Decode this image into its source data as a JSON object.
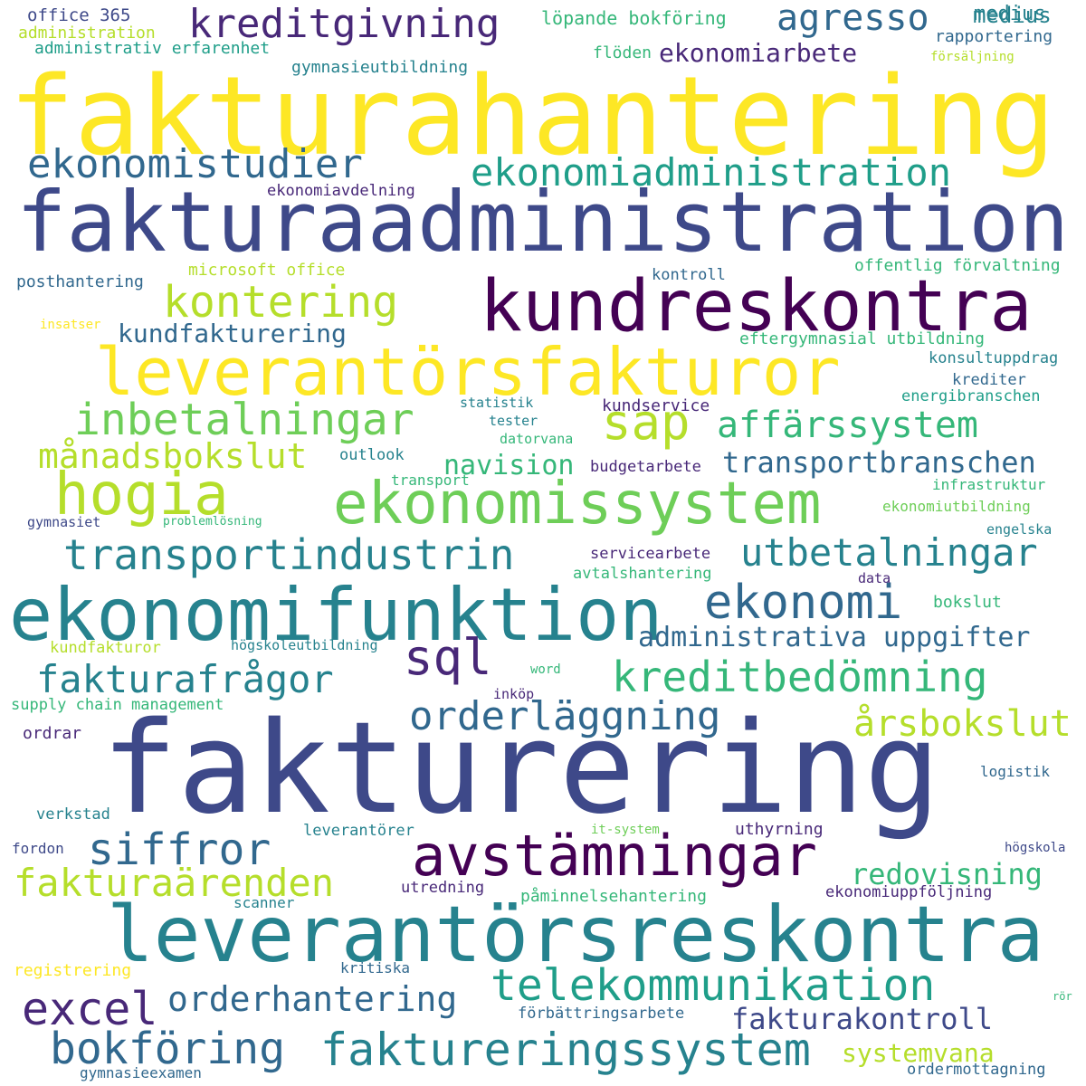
{
  "cloud": {
    "words": [
      {
        "text": "fakturahantering",
        "color": "#fde725"
      },
      {
        "text": "fakturaadministration",
        "color": "#3e4989"
      },
      {
        "text": "kundreskontra",
        "color": "#440154"
      },
      {
        "text": "leverantörsfakturor",
        "color": "#fde725"
      },
      {
        "text": "fakturering",
        "color": "#3e4989"
      },
      {
        "text": "leverantörsreskontra",
        "color": "#26828e"
      },
      {
        "text": "ekonomifunktion",
        "color": "#26828e"
      },
      {
        "text": "ekonomissystem",
        "color": "#6ece58"
      },
      {
        "text": "hogia",
        "color": "#b5de2b"
      },
      {
        "text": "avstämningar",
        "color": "#440154"
      },
      {
        "text": "kreditgivning",
        "color": "#482878"
      },
      {
        "text": "agresso",
        "color": "#31688e"
      },
      {
        "text": "medius",
        "color": "#26828e"
      },
      {
        "text": "ekonomiarbete",
        "color": "#482878"
      },
      {
        "text": "ekonomistudier",
        "color": "#31688e"
      },
      {
        "text": "ekonomiadministration",
        "color": "#1f9e89"
      },
      {
        "text": "kontering",
        "color": "#b5de2b"
      },
      {
        "text": "inbetalningar",
        "color": "#6ece58"
      },
      {
        "text": "sap",
        "color": "#b5de2b"
      },
      {
        "text": "affärssystem",
        "color": "#35b779"
      },
      {
        "text": "månadsbokslut",
        "color": "#b5de2b"
      },
      {
        "text": "navision",
        "color": "#35b779"
      },
      {
        "text": "transportbranschen",
        "color": "#31688e"
      },
      {
        "text": "transportindustrin",
        "color": "#26828e"
      },
      {
        "text": "utbetalningar",
        "color": "#26828e"
      },
      {
        "text": "ekonomi",
        "color": "#31688e"
      },
      {
        "text": "sql",
        "color": "#482878"
      },
      {
        "text": "administrativa uppgifter",
        "color": "#31688e"
      },
      {
        "text": "fakturafrågor",
        "color": "#26828e"
      },
      {
        "text": "kreditbedömning",
        "color": "#35b779"
      },
      {
        "text": "orderläggning",
        "color": "#31688e"
      },
      {
        "text": "årsbokslut",
        "color": "#b5de2b"
      },
      {
        "text": "siffror",
        "color": "#31688e"
      },
      {
        "text": "fakturaärenden",
        "color": "#b5de2b"
      },
      {
        "text": "redovisning",
        "color": "#35b779"
      },
      {
        "text": "telekommunikation",
        "color": "#1f9e89"
      },
      {
        "text": "excel",
        "color": "#482878"
      },
      {
        "text": "orderhantering",
        "color": "#31688e"
      },
      {
        "text": "fakturakontroll",
        "color": "#3e4989"
      },
      {
        "text": "bokföring",
        "color": "#31688e"
      },
      {
        "text": "faktureringssystem",
        "color": "#26828e"
      },
      {
        "text": "systemvana",
        "color": "#b5de2b"
      },
      {
        "text": "kundfakturering",
        "color": "#31688e"
      },
      {
        "text": "office 365",
        "color": "#3e4989"
      },
      {
        "text": "administration",
        "color": "#b5de2b"
      },
      {
        "text": "administrativ erfarenhet",
        "color": "#1f9e89"
      },
      {
        "text": "löpande bokföring",
        "color": "#35b779"
      },
      {
        "text": "medius",
        "color": "#26828e"
      },
      {
        "text": "rapportering",
        "color": "#31688e"
      },
      {
        "text": "flöden",
        "color": "#35b779"
      },
      {
        "text": "gymnasieutbildning",
        "color": "#26828e"
      },
      {
        "text": "försäljning",
        "color": "#b5de2b"
      },
      {
        "text": "ekonomiavdelning",
        "color": "#482878"
      },
      {
        "text": "microsoft office",
        "color": "#b5de2b"
      },
      {
        "text": "offentlig förvaltning",
        "color": "#35b779"
      },
      {
        "text": "posthantering",
        "color": "#31688e"
      },
      {
        "text": "kontroll",
        "color": "#31688e"
      },
      {
        "text": "insatser",
        "color": "#fde725"
      },
      {
        "text": "eftergymnasial utbildning",
        "color": "#35b779"
      },
      {
        "text": "konsultuppdrag",
        "color": "#26828e"
      },
      {
        "text": "krediter",
        "color": "#31688e"
      },
      {
        "text": "energibranschen",
        "color": "#1f9e89"
      },
      {
        "text": "statistik",
        "color": "#26828e"
      },
      {
        "text": "kundservice",
        "color": "#482878"
      },
      {
        "text": "tester",
        "color": "#26828e"
      },
      {
        "text": "datorvana",
        "color": "#35b779"
      },
      {
        "text": "outlook",
        "color": "#26828e"
      },
      {
        "text": "budgetarbete",
        "color": "#482878"
      },
      {
        "text": "transport",
        "color": "#35b779"
      },
      {
        "text": "infrastruktur",
        "color": "#35b779"
      },
      {
        "text": "ekonomiutbildning",
        "color": "#6ece58"
      },
      {
        "text": "gymnasiet",
        "color": "#3e4989"
      },
      {
        "text": "problemlösning",
        "color": "#35b779"
      },
      {
        "text": "engelska",
        "color": "#26828e"
      },
      {
        "text": "servicearbete",
        "color": "#482878"
      },
      {
        "text": "avtalshantering",
        "color": "#35b779"
      },
      {
        "text": "data",
        "color": "#482878"
      },
      {
        "text": "bokslut",
        "color": "#35b779"
      },
      {
        "text": "kundfakturor",
        "color": "#b5de2b"
      },
      {
        "text": "högskoleutbildning",
        "color": "#26828e"
      },
      {
        "text": "word",
        "color": "#35b779"
      },
      {
        "text": "inköp",
        "color": "#482878"
      },
      {
        "text": "supply chain management",
        "color": "#35b779"
      },
      {
        "text": "ordrar",
        "color": "#482878"
      },
      {
        "text": "logistik",
        "color": "#31688e"
      },
      {
        "text": "verkstad",
        "color": "#26828e"
      },
      {
        "text": "it-system",
        "color": "#6ece58"
      },
      {
        "text": "leverantörer",
        "color": "#26828e"
      },
      {
        "text": "uthyrning",
        "color": "#482878"
      },
      {
        "text": "fordon",
        "color": "#3e4989"
      },
      {
        "text": "högskola",
        "color": "#3e4989"
      },
      {
        "text": "utredning",
        "color": "#482878"
      },
      {
        "text": "påminnelsehantering",
        "color": "#35b779"
      },
      {
        "text": "ekonomiuppföljning",
        "color": "#482878"
      },
      {
        "text": "scanner",
        "color": "#26828e"
      },
      {
        "text": "registrering",
        "color": "#fde725"
      },
      {
        "text": "kritiska",
        "color": "#31688e"
      },
      {
        "text": "rör",
        "color": "#35b779"
      },
      {
        "text": "förbättringsarbete",
        "color": "#31688e"
      },
      {
        "text": "gymnasieexamen",
        "color": "#31688e"
      },
      {
        "text": "ordermottagning",
        "color": "#31688e"
      }
    ]
  }
}
